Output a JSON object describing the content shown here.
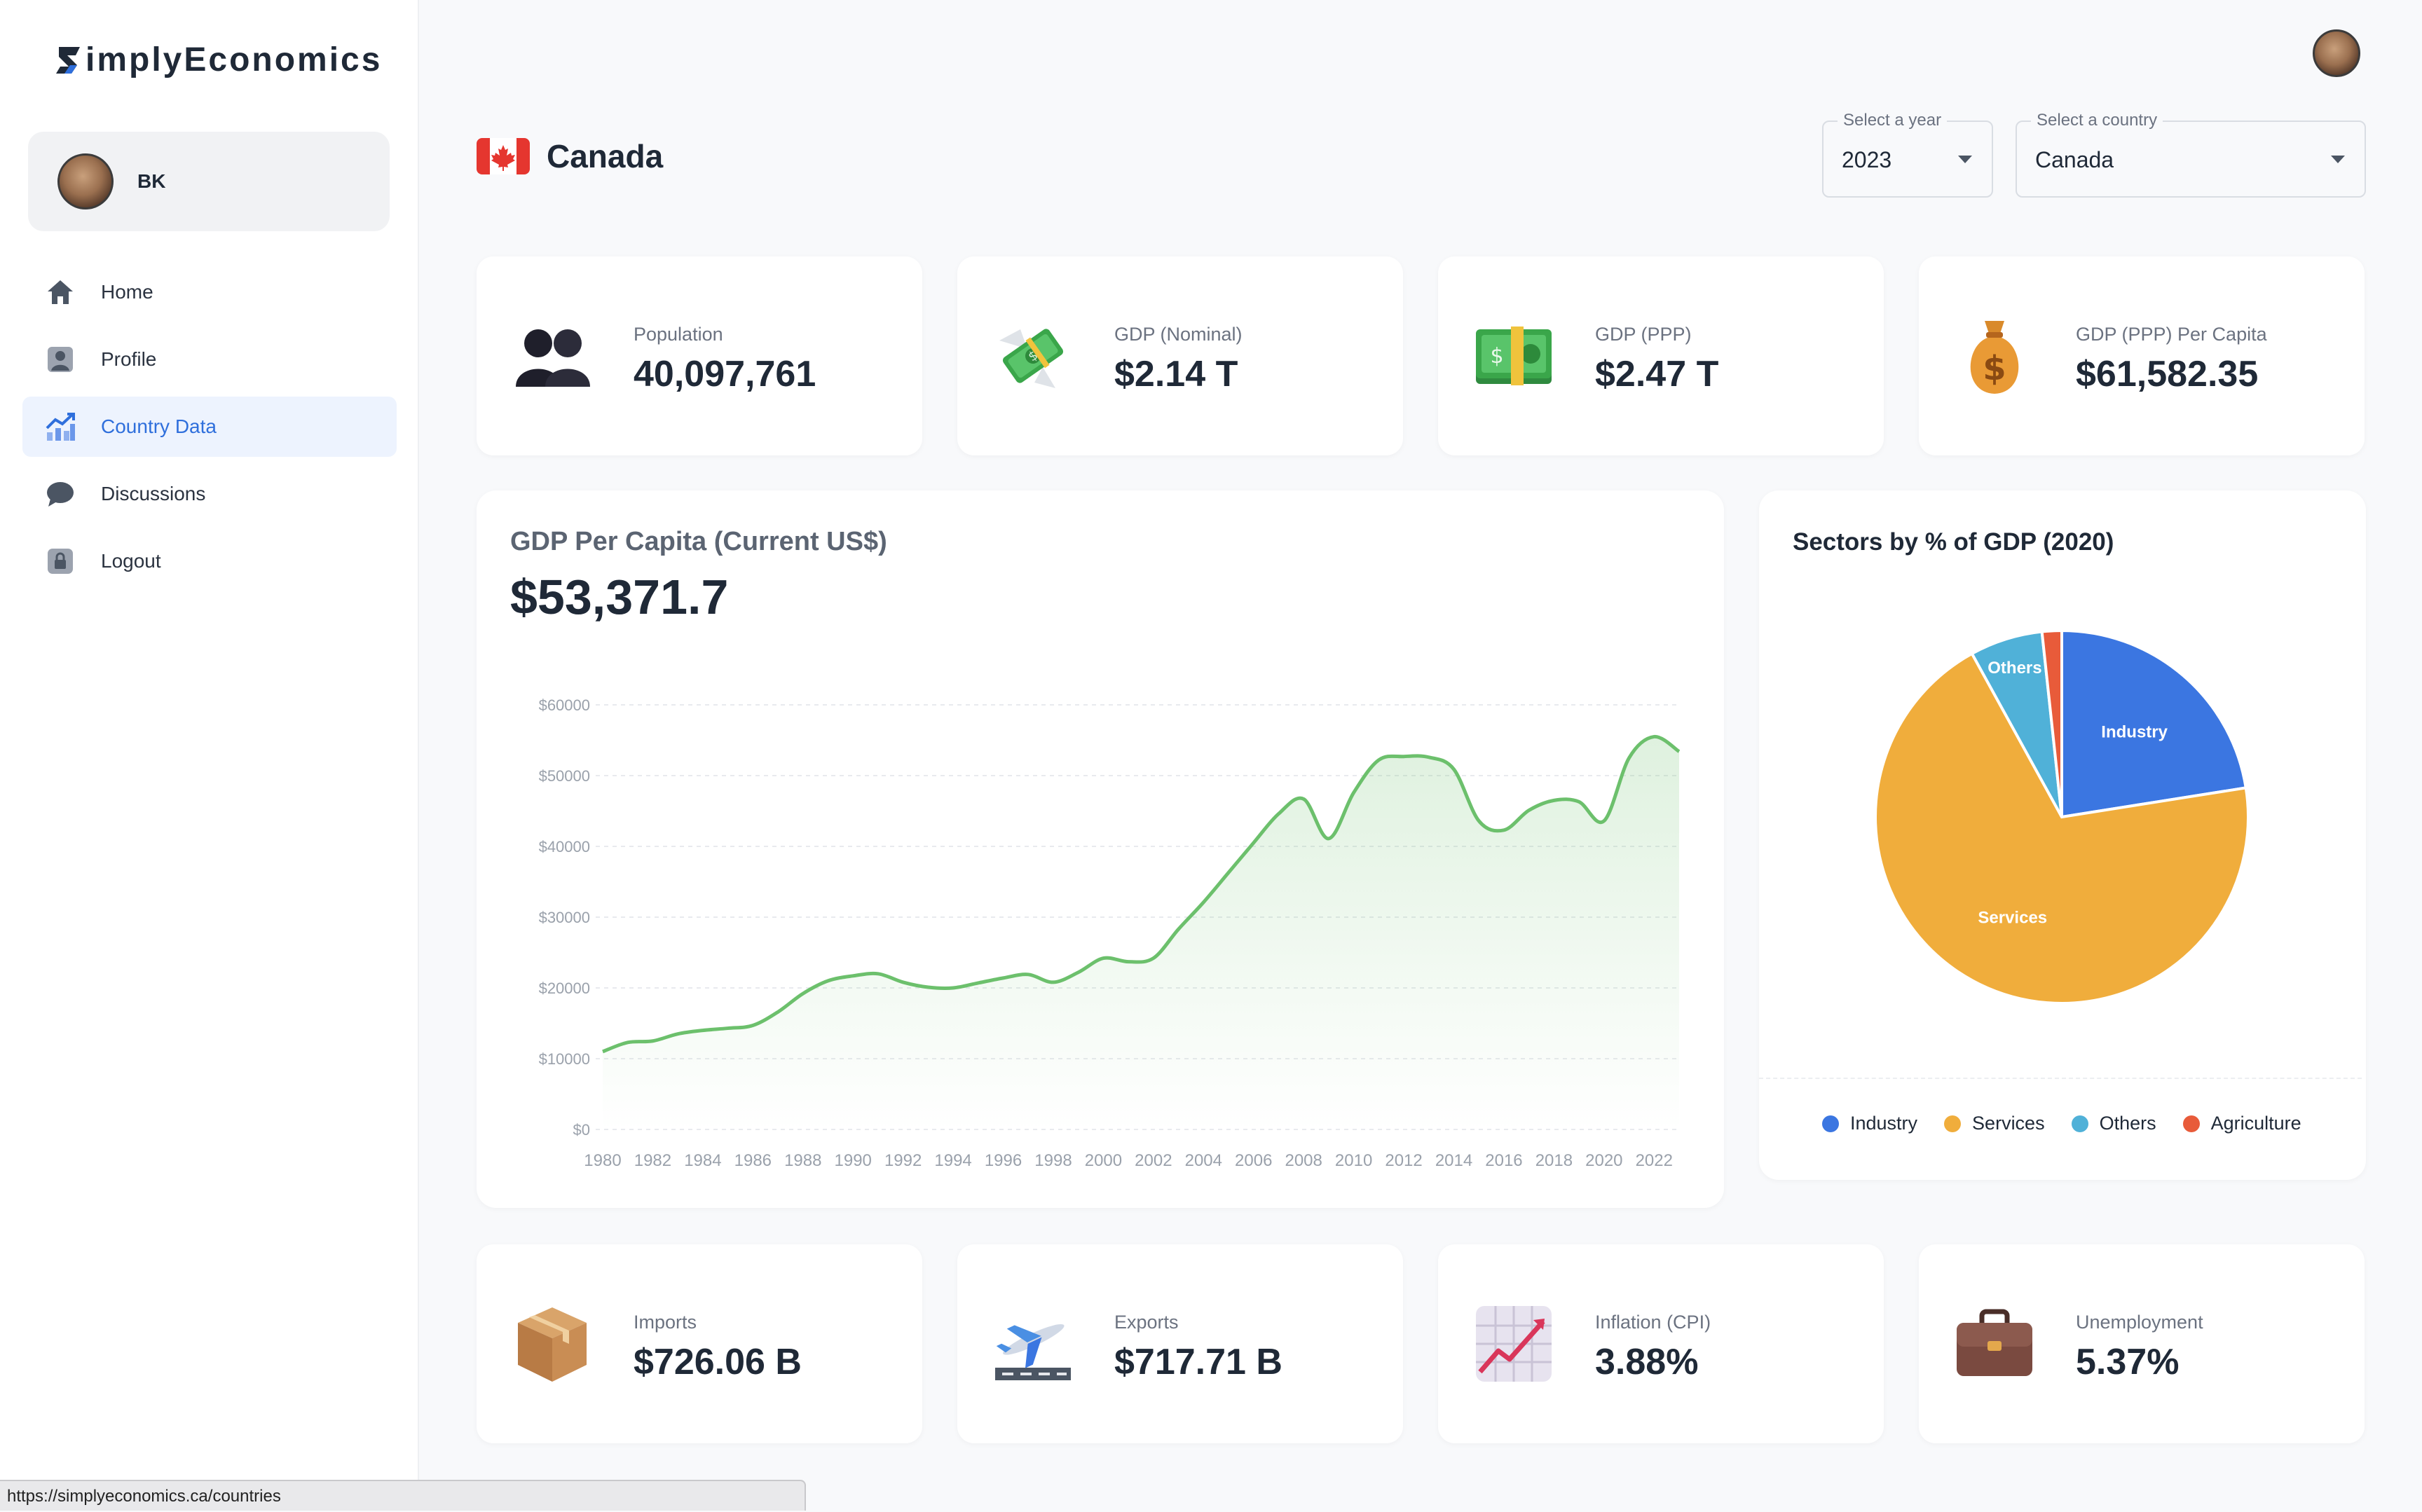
{
  "app": {
    "logo_text": "implyEconomics"
  },
  "user": {
    "initials": "BK"
  },
  "nav": {
    "items": [
      {
        "label": "Home",
        "icon": "home-icon"
      },
      {
        "label": "Profile",
        "icon": "profile-icon"
      },
      {
        "label": "Country Data",
        "icon": "chart-icon",
        "active": true
      },
      {
        "label": "Discussions",
        "icon": "chat-bubble-icon"
      },
      {
        "label": "Logout",
        "icon": "lock-icon"
      }
    ]
  },
  "header": {
    "country": "Canada",
    "flag_icon": "canada-flag-icon"
  },
  "filters": {
    "year": {
      "label": "Select a year",
      "value": "2023"
    },
    "country": {
      "label": "Select a country",
      "value": "Canada"
    }
  },
  "stats_top": [
    {
      "label": "Population",
      "value": "40,097,761",
      "icon": "people-silhouette-icon"
    },
    {
      "label": "GDP (Nominal)",
      "value": "$2.14 T",
      "icon": "money-with-wings-icon"
    },
    {
      "label": "GDP (PPP)",
      "value": "$2.47 T",
      "icon": "banknote-icon"
    },
    {
      "label": "GDP (PPP) Per Capita",
      "value": "$61,582.35",
      "icon": "money-bag-icon"
    }
  ],
  "stats_bottom": [
    {
      "label": "Imports",
      "value": "$726.06 B",
      "icon": "package-icon"
    },
    {
      "label": "Exports",
      "value": "$717.71 B",
      "icon": "airplane-departure-icon"
    },
    {
      "label": "Inflation (CPI)",
      "value": "3.88%",
      "icon": "chart-increasing-icon"
    },
    {
      "label": "Unemployment",
      "value": "5.37%",
      "icon": "briefcase-icon"
    }
  ],
  "gdp_panel": {
    "title": "GDP Per Capita (Current US$)",
    "value": "$53,371.7"
  },
  "pie_panel": {
    "title": "Sectors by % of GDP (2020)"
  },
  "status_bar": {
    "url": "https://simplyeconomics.ca/countries"
  },
  "colors": {
    "accent": "#2f6fdc",
    "line": "#6cc06c",
    "industry": "#3b76e1",
    "services": "#f0ad3c",
    "others": "#50b1d8",
    "agriculture": "#e85b3a"
  },
  "chart_data": [
    {
      "type": "area",
      "title": "GDP Per Capita (Current US$)",
      "x": [
        1980,
        1981,
        1982,
        1983,
        1984,
        1985,
        1986,
        1987,
        1988,
        1989,
        1990,
        1991,
        1992,
        1993,
        1994,
        1995,
        1996,
        1997,
        1998,
        1999,
        2000,
        2001,
        2002,
        2003,
        2004,
        2005,
        2006,
        2007,
        2008,
        2009,
        2010,
        2011,
        2012,
        2013,
        2014,
        2015,
        2016,
        2017,
        2018,
        2019,
        2020,
        2021,
        2022,
        2023
      ],
      "y": [
        11000,
        12300,
        12500,
        13500,
        14000,
        14300,
        14700,
        16600,
        19200,
        21000,
        21700,
        22000,
        20800,
        20100,
        20000,
        20700,
        21400,
        21900,
        20800,
        22200,
        24200,
        23700,
        24200,
        28300,
        32100,
        36300,
        40500,
        44600,
        46700,
        41100,
        47600,
        52200,
        52700,
        52600,
        50900,
        43600,
        42300,
        45100,
        46500,
        46300,
        43600,
        52500,
        55500,
        53400
      ],
      "xticks": [
        "1980",
        "1982",
        "1984",
        "1986",
        "1988",
        "1990",
        "1992",
        "1994",
        "1996",
        "1998",
        "2000",
        "2002",
        "2004",
        "2006",
        "2008",
        "2010",
        "2012",
        "2014",
        "2016",
        "2018",
        "2020",
        "2022"
      ],
      "yticks": [
        "$0",
        "$10000",
        "$20000",
        "$30000",
        "$40000",
        "$50000",
        "$60000"
      ],
      "ylim": [
        0,
        60000
      ],
      "grid": true
    },
    {
      "type": "pie",
      "title": "Sectors by % of GDP (2020)",
      "categories": [
        "Industry",
        "Services",
        "Others",
        "Agriculture"
      ],
      "values": [
        22.5,
        69.5,
        6.3,
        1.7
      ],
      "slice_labels": [
        "Industry",
        "Services",
        "Others",
        ""
      ],
      "legend_position": "bottom"
    }
  ]
}
